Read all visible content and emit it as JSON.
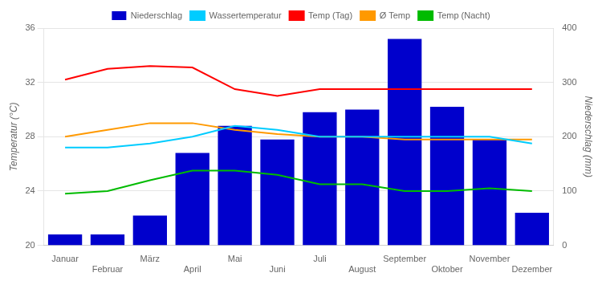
{
  "chart_data": {
    "type": "bar",
    "categories": [
      "Januar",
      "Februar",
      "März",
      "April",
      "Mai",
      "Juni",
      "Juli",
      "August",
      "September",
      "Oktober",
      "November",
      "Dezember"
    ],
    "series": [
      {
        "name": "Niederschlag",
        "type": "bar",
        "axis": "y2",
        "color": "#0000cc",
        "values": [
          20,
          20,
          55,
          170,
          220,
          195,
          245,
          250,
          380,
          255,
          195,
          60
        ]
      },
      {
        "name": "Wassertemperatur",
        "type": "line",
        "color": "#00ccff",
        "values": [
          27.2,
          27.2,
          27.5,
          28.0,
          28.8,
          28.5,
          28.0,
          28.0,
          28.0,
          28.0,
          28.0,
          27.5
        ]
      },
      {
        "name": "Temp (Tag)",
        "type": "line",
        "color": "#ff0000",
        "values": [
          32.2,
          33.0,
          33.2,
          33.1,
          31.5,
          31.0,
          31.5,
          31.5,
          31.5,
          31.5,
          31.5,
          31.5
        ]
      },
      {
        "name": "Ø Temp",
        "type": "line",
        "color": "#ff9900",
        "values": [
          28.0,
          28.5,
          29.0,
          29.0,
          28.5,
          28.2,
          28.0,
          28.0,
          27.8,
          27.8,
          27.8,
          27.8
        ]
      },
      {
        "name": "Temp (Nacht)",
        "type": "line",
        "color": "#00bb00",
        "values": [
          23.8,
          24.0,
          24.8,
          25.5,
          25.5,
          25.2,
          24.5,
          24.5,
          24.0,
          24.0,
          24.2,
          24.0
        ]
      }
    ],
    "ylabel": "Temperatur (°C)",
    "y2label": "Niederschlag (mm)",
    "ylim": [
      20,
      36
    ],
    "yticks": [
      20,
      24,
      28,
      32,
      36
    ],
    "y2lim": [
      0,
      400
    ],
    "y2ticks": [
      0,
      100,
      200,
      300,
      400
    ],
    "grid": true,
    "legend": "top"
  }
}
